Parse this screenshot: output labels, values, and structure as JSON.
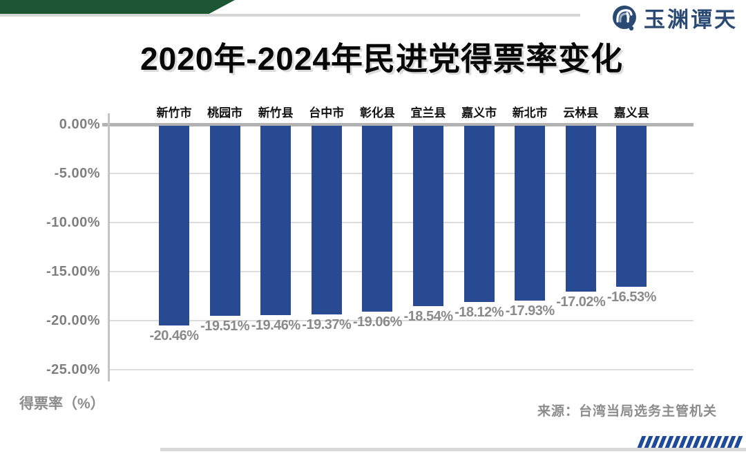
{
  "page": {
    "title": "2020年-2024年民进党得票率变化",
    "source_note": "来源：台湾当局选务主管机关",
    "logo_text": "玉渊谭天"
  },
  "chart_data": {
    "type": "bar",
    "title": "2020年-2024年民进党得票率变化",
    "categories": [
      "新竹市",
      "桃园市",
      "新竹县",
      "台中市",
      "彰化县",
      "宜兰县",
      "嘉义市",
      "新北市",
      "云林县",
      "嘉义县"
    ],
    "values": [
      -20.46,
      -19.51,
      -19.46,
      -19.37,
      -19.06,
      -18.54,
      -18.12,
      -17.93,
      -17.02,
      -16.53
    ],
    "value_labels": [
      "-20.46%",
      "-19.51%",
      "-19.46%",
      "-19.37%",
      "-19.06%",
      "-18.54%",
      "-18.12%",
      "-17.93%",
      "-17.02%",
      "-16.53%"
    ],
    "xlabel": "",
    "ylabel": "得票率（%）",
    "ytick_labels": [
      "0.00%",
      "-5.00%",
      "-10.00%",
      "-15.00%",
      "-20.00%",
      "-25.00%"
    ],
    "ytick_values": [
      0,
      -5,
      -10,
      -15,
      -20,
      -25
    ],
    "ylim": [
      -26.2,
      0
    ],
    "grid": true,
    "legend": null,
    "bar_color": "#274a92",
    "value_label_color": "#8a8a8a"
  },
  "colors": {
    "accent_green": "#1d5632",
    "bar_blue": "#274a92",
    "hatch_blue": "#1e4a99",
    "rule_gray": "#d6d6d6",
    "text_gray": "#8c8c8c"
  }
}
